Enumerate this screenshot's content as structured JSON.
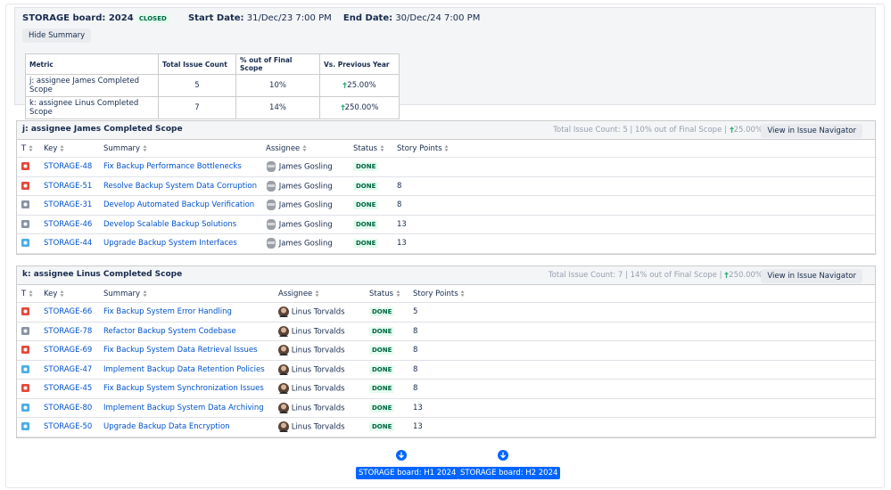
{
  "header": {
    "title": "STORAGE board: 2024",
    "state": "CLOSED",
    "start_label": "Start Date:",
    "start": "31/Dec/23 7:00 PM",
    "end_label": "End Date:",
    "end": "30/Dec/24 7:00 PM",
    "toggle": "Hide Summary"
  },
  "summary": {
    "columns": [
      "Metric",
      "Total Issue Count",
      "% out of Final Scope",
      "Vs. Previous Year"
    ],
    "rows": [
      [
        "j: assignee James Completed Scope",
        "5",
        "10%",
        "25.00%"
      ],
      [
        "k: assignee Linus Completed Scope",
        "7",
        "14%",
        "250.00%"
      ]
    ]
  },
  "sections": [
    {
      "title": "j: assignee James Completed Scope",
      "stats": "Total Issue Count: 5 | 10% out of Final Scope |",
      "change": "25.00%",
      "button": "View in Issue Navigator",
      "columns": [
        "T",
        "Key",
        "Summary",
        "Assignee",
        "Status",
        "Story Points"
      ],
      "issues": [
        {
          "icon_color": "#e5493a",
          "key": "STORAGE-48",
          "summary": "Fix Backup Performance Bottlenecks",
          "assignee": "James Gosling",
          "status": "DONE",
          "points": null
        },
        {
          "icon_color": "#e5493a",
          "key": "STORAGE-51",
          "summary": "Resolve Backup System Data Corruption",
          "assignee": "James Gosling",
          "status": "DONE",
          "points": 8
        },
        {
          "icon_color": "#8993a4",
          "key": "STORAGE-31",
          "summary": "Develop Automated Backup Verification",
          "assignee": "James Gosling",
          "status": "DONE",
          "points": 8
        },
        {
          "icon_color": "#8993a4",
          "key": "STORAGE-46",
          "summary": "Develop Scalable Backup Solutions",
          "assignee": "James Gosling",
          "status": "DONE",
          "points": 13
        },
        {
          "icon_color": "#4bade8",
          "key": "STORAGE-44",
          "summary": "Upgrade Backup System Interfaces",
          "assignee": "James Gosling",
          "status": "DONE",
          "points": 13
        }
      ]
    },
    {
      "title": "k: assignee Linus Completed Scope",
      "stats": "Total Issue Count: 7 | 14% out of Final Scope |",
      "change": "250.00%",
      "button": "View in Issue Navigator",
      "columns": [
        "T",
        "Key",
        "Summary",
        "Assignee",
        "Status",
        "Story Points"
      ],
      "issues": [
        {
          "icon_color": "#e5493a",
          "key": "STORAGE-66",
          "summary": "Fix Backup System Error Handling",
          "assignee": "Linus Torvalds",
          "status": "DONE",
          "points": 5
        },
        {
          "icon_color": "#8993a4",
          "key": "STORAGE-78",
          "summary": "Refactor Backup System Codebase",
          "assignee": "Linus Torvalds",
          "status": "DONE",
          "points": 8
        },
        {
          "icon_color": "#e5493a",
          "key": "STORAGE-69",
          "summary": "Fix Backup System Data Retrieval Issues",
          "assignee": "Linus Torvalds",
          "status": "DONE",
          "points": 8
        },
        {
          "icon_color": "#4bade8",
          "key": "STORAGE-47",
          "summary": "Implement Backup Data Retention Policies",
          "assignee": "Linus Torvalds",
          "status": "DONE",
          "points": 8
        },
        {
          "icon_color": "#e5493a",
          "key": "STORAGE-45",
          "summary": "Fix Backup System Synchronization Issues",
          "assignee": "Linus Torvalds",
          "status": "DONE",
          "points": 8
        },
        {
          "icon_color": "#4bade8",
          "key": "STORAGE-80",
          "summary": "Implement Backup System Data Archiving",
          "assignee": "Linus Torvalds",
          "status": "DONE",
          "points": 13
        },
        {
          "icon_color": "#4bade8",
          "key": "STORAGE-50",
          "summary": "Upgrade Backup Data Encryption",
          "assignee": "Linus Torvalds",
          "status": "DONE",
          "points": 13
        }
      ]
    }
  ],
  "footer": [
    "STORAGE board: H1 2024",
    "STORAGE board: H2 2024"
  ]
}
